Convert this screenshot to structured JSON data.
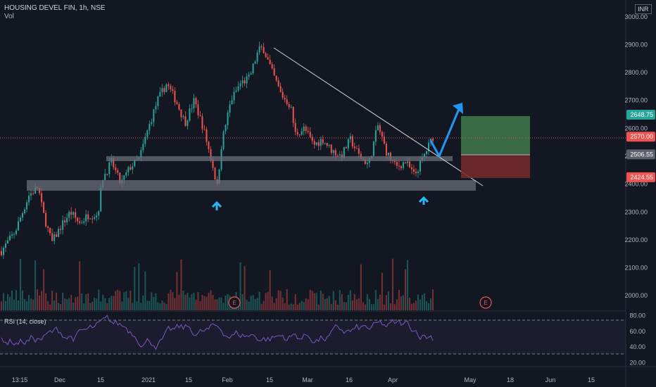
{
  "header": {
    "symbol": "HOUSING DEVEL FIN, 1h, NSE",
    "volume_label": "Vol",
    "currency": "INR",
    "rsi_label": "RSI (14, close)"
  },
  "colors": {
    "background": "#131722",
    "up": "#26a69a",
    "down": "#ef5350",
    "rsi_line": "#7e57c2",
    "zone_gray": "#6a6d78",
    "trendline": "#d1d4dc",
    "arrow_blue": "#2196f3",
    "target_green": "#3f7a4a",
    "stop_red": "#7a2a2c",
    "earnings": "#ef5350"
  },
  "chart_data": {
    "type": "candlestick",
    "interval": "1h",
    "y_ticks": [
      "3000.00",
      "2900.00",
      "2800.00",
      "2700.00",
      "2600.00",
      "2500.00",
      "2400.00",
      "2300.00",
      "2200.00",
      "2100.00",
      "2000.00"
    ],
    "y_range": [
      1945,
      3060
    ],
    "x_ticks": [
      "13:15",
      "Dec",
      "15",
      "2021",
      "15",
      "Feb",
      "15",
      "Mar",
      "16",
      "Apr",
      "May",
      "18",
      "Jun",
      "15"
    ],
    "price_path": [
      [
        0,
        2160
      ],
      [
        3,
        2230
      ],
      [
        6,
        2360
      ],
      [
        8,
        2390
      ],
      [
        9,
        2300
      ],
      [
        11,
        2190
      ],
      [
        13,
        2250
      ],
      [
        15,
        2300
      ],
      [
        17,
        2260
      ],
      [
        19,
        2290
      ],
      [
        21,
        2290
      ],
      [
        22,
        2420
      ],
      [
        24,
        2480
      ],
      [
        26,
        2400
      ],
      [
        28,
        2460
      ],
      [
        30,
        2490
      ],
      [
        32,
        2600
      ],
      [
        34,
        2700
      ],
      [
        36,
        2760
      ],
      [
        38,
        2700
      ],
      [
        40,
        2620
      ],
      [
        42,
        2700
      ],
      [
        44,
        2600
      ],
      [
        46,
        2470
      ],
      [
        47,
        2390
      ],
      [
        48,
        2550
      ],
      [
        50,
        2700
      ],
      [
        52,
        2760
      ],
      [
        54,
        2780
      ],
      [
        56,
        2880
      ],
      [
        57,
        2890
      ],
      [
        59,
        2800
      ],
      [
        61,
        2720
      ],
      [
        63,
        2680
      ],
      [
        64,
        2580
      ],
      [
        66,
        2600
      ],
      [
        68,
        2540
      ],
      [
        70,
        2560
      ],
      [
        72,
        2520
      ],
      [
        74,
        2500
      ],
      [
        76,
        2560
      ],
      [
        78,
        2500
      ],
      [
        80,
        2470
      ],
      [
        82,
        2610
      ],
      [
        84,
        2510
      ],
      [
        86,
        2460
      ],
      [
        88,
        2480
      ],
      [
        90,
        2430
      ],
      [
        92,
        2500
      ],
      [
        94,
        2570
      ]
    ],
    "price_labels": [
      {
        "value": 2648.75,
        "text": "2648.75",
        "color": "#26a69a"
      },
      {
        "value": 2570.0,
        "text": "2570.00",
        "color": "#ef5350"
      },
      {
        "value": 2506.55,
        "text": "2506.55",
        "color": "#5d606b"
      },
      {
        "value": 2424.55,
        "text": "2424.55",
        "color": "#ef5350"
      }
    ],
    "rsi": {
      "y_ticks": [
        "80.00",
        "60.00",
        "40.00",
        "20.00"
      ],
      "y_range": [
        15,
        85
      ],
      "upper_band": 70,
      "lower_band": 30
    },
    "earnings_markers": [
      "E",
      "E"
    ]
  }
}
